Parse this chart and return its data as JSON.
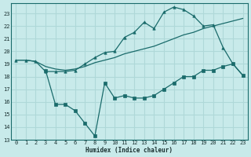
{
  "background_color": "#c8eaea",
  "grid_color": "#afd8d8",
  "line_color": "#1a6b6b",
  "xlabel": "Humidex (Indice chaleur)",
  "xlim": [
    -0.5,
    23.5
  ],
  "ylim": [
    13,
    23.8
  ],
  "yticks": [
    13,
    14,
    15,
    16,
    17,
    18,
    19,
    20,
    21,
    22,
    23
  ],
  "xticks": [
    0,
    1,
    2,
    3,
    4,
    5,
    6,
    7,
    8,
    9,
    10,
    11,
    12,
    13,
    14,
    15,
    16,
    17,
    18,
    19,
    20,
    21,
    22,
    23
  ],
  "line1_x": [
    0,
    1,
    2,
    3,
    4,
    5,
    6,
    7,
    8,
    9,
    10,
    11,
    12,
    13,
    14,
    15,
    16,
    17,
    18,
    19,
    20,
    21,
    22,
    23
  ],
  "line1_y": [
    19.3,
    19.3,
    19.2,
    18.4,
    18.4,
    18.4,
    18.5,
    19.0,
    19.5,
    19.9,
    20.0,
    21.1,
    21.5,
    22.3,
    21.8,
    23.1,
    23.5,
    23.3,
    22.8,
    22.0,
    22.1,
    20.3,
    19.0,
    18.1
  ],
  "line2_x": [
    0,
    1,
    2,
    3,
    4,
    5,
    6,
    7,
    8,
    9,
    10,
    11,
    12,
    13,
    14,
    15,
    16,
    17,
    18,
    19,
    20,
    21,
    22,
    23
  ],
  "line2_y": [
    19.3,
    19.3,
    19.2,
    18.8,
    18.6,
    18.5,
    18.6,
    18.8,
    19.1,
    19.3,
    19.5,
    19.8,
    20.0,
    20.2,
    20.4,
    20.7,
    21.0,
    21.3,
    21.5,
    21.8,
    22.0,
    22.2,
    22.4,
    22.6
  ],
  "line3_x": [
    3,
    4,
    5,
    6,
    7,
    8,
    9,
    10,
    11,
    12,
    13,
    14,
    15,
    16,
    17,
    18,
    19,
    20,
    21,
    22,
    23
  ],
  "line3_y": [
    18.5,
    15.8,
    15.8,
    15.3,
    14.3,
    13.3,
    17.5,
    16.3,
    16.5,
    16.3,
    16.3,
    16.5,
    17.0,
    17.5,
    18.0,
    18.0,
    18.5,
    18.5,
    18.8,
    19.0,
    18.1
  ]
}
